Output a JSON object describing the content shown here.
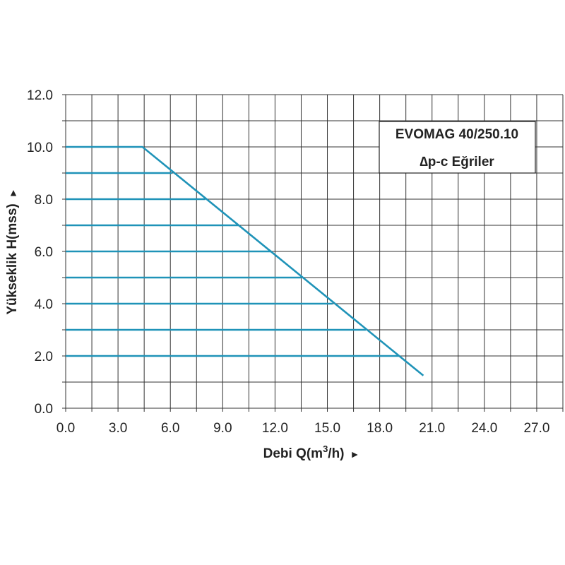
{
  "chart_data": {
    "type": "line",
    "title": "EVOMAG 40/250.10",
    "subtitle": "∆p-c Eğriler",
    "xlabel_prefix": "Debi Q(m",
    "xlabel_sup": "3",
    "xlabel_suffix": "/h)",
    "xlabel_arrow": "►",
    "ylabel": "Yükseklik H(mss)",
    "ylabel_arrow": "►",
    "xlim": [
      0,
      28.5
    ],
    "ylim": [
      0,
      12
    ],
    "x_ticks": [
      "0.0",
      "3.0",
      "6.0",
      "9.0",
      "12.0",
      "15.0",
      "18.0",
      "21.0",
      "24.0",
      "27.0"
    ],
    "y_ticks": [
      "0.0",
      "2.0",
      "4.0",
      "6.0",
      "8.0",
      "10.0",
      "12.0"
    ],
    "grid": true,
    "line_color": "#1f93b8",
    "series": [
      {
        "x": [
          0,
          4.4,
          20.5
        ],
        "y": [
          10,
          10,
          1.25
        ]
      },
      {
        "x": [
          0,
          6.1
        ],
        "y": [
          9,
          9
        ]
      },
      {
        "x": [
          0,
          8.0
        ],
        "y": [
          8,
          8
        ]
      },
      {
        "x": [
          0,
          9.9
        ],
        "y": [
          7,
          7
        ]
      },
      {
        "x": [
          0,
          11.8
        ],
        "y": [
          6,
          6
        ]
      },
      {
        "x": [
          0,
          13.5
        ],
        "y": [
          5,
          5
        ]
      },
      {
        "x": [
          0,
          15.3
        ],
        "y": [
          4,
          4
        ]
      },
      {
        "x": [
          0,
          17.2
        ],
        "y": [
          3,
          3
        ]
      },
      {
        "x": [
          0,
          19.1
        ],
        "y": [
          2,
          2
        ]
      }
    ]
  }
}
